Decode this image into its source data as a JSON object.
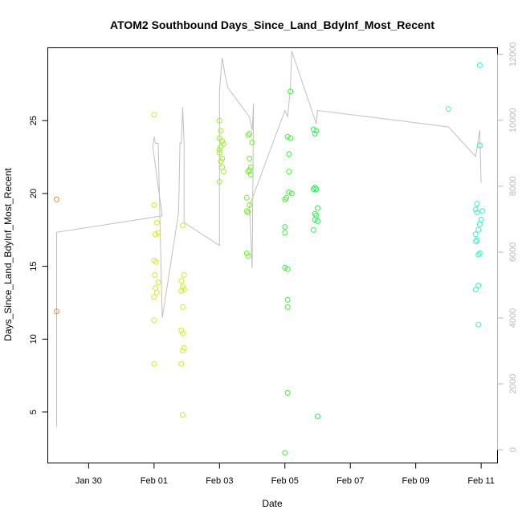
{
  "chart_data": {
    "type": "scatter",
    "title": "ATOM2 Southbound Days_Since_Land_BdyInf_Most_Recent",
    "xlabel": "Date",
    "ylabel": "Days_Since_Land_BdyInf_Most_Recent",
    "x_ticks": [
      "Jan 30",
      "Feb 01",
      "Feb 03",
      "Feb 05",
      "Feb 07",
      "Feb 09",
      "Feb 11"
    ],
    "y_ticks": [
      5,
      10,
      15,
      20,
      25
    ],
    "y2_ticks": [
      0,
      2000,
      4000,
      6000,
      8000,
      10000,
      12000
    ],
    "xlim": [
      "2019-01-28T18:00",
      "2019-02-11T12:00"
    ],
    "ylim": [
      1.5,
      30
    ],
    "y2lim": [
      -400,
      12200
    ],
    "grid": false,
    "colors": {
      "jan28": "#f08a2b",
      "feb01": "#d6e82a",
      "feb02": "#c8f02a",
      "feb03": "#9ef02a",
      "feb04": "#6ff02a",
      "feb05": "#3ef23a",
      "feb06": "#2ef055",
      "feb10": "#48f2a6",
      "feb11": "#3af0c8",
      "line": "#c0c0c0"
    },
    "series": [
      {
        "color": "#f08a2b",
        "points": [
          [
            "2019-01-29T00:30",
            19.6
          ],
          [
            "2019-01-29T00:30",
            11.9
          ]
        ]
      },
      {
        "color": "#d6e82a",
        "points": [
          [
            "2019-02-01T00:00",
            25.4
          ],
          [
            "2019-02-01T00:00",
            19.2
          ],
          [
            "2019-02-01T02:00",
            18.0
          ],
          [
            "2019-02-01T03:00",
            17.3
          ],
          [
            "2019-02-01T01:00",
            17.2
          ],
          [
            "2019-02-01T00:00",
            15.4
          ],
          [
            "2019-02-01T01:30",
            15.3
          ],
          [
            "2019-02-01T00:30",
            14.4
          ],
          [
            "2019-02-01T03:00",
            13.9
          ],
          [
            "2019-02-01T01:00",
            13.5
          ],
          [
            "2019-02-01T02:00",
            13.2
          ],
          [
            "2019-02-01T00:00",
            12.9
          ],
          [
            "2019-02-01T00:00",
            11.3
          ],
          [
            "2019-02-01T00:00",
            8.3
          ]
        ]
      },
      {
        "color": "#c8f02a",
        "points": [
          [
            "2019-02-01T21:00",
            17.8
          ],
          [
            "2019-02-01T22:00",
            14.4
          ],
          [
            "2019-02-01T20:00",
            14.0
          ],
          [
            "2019-02-01T21:00",
            13.6
          ],
          [
            "2019-02-01T22:00",
            13.4
          ],
          [
            "2019-02-01T20:00",
            13.3
          ],
          [
            "2019-02-01T21:00",
            12.2
          ],
          [
            "2019-02-01T20:00",
            10.6
          ],
          [
            "2019-02-01T21:00",
            10.4
          ],
          [
            "2019-02-01T22:00",
            9.4
          ],
          [
            "2019-02-01T21:00",
            9.2
          ],
          [
            "2019-02-01T20:00",
            8.3
          ],
          [
            "2019-02-01T21:00",
            4.8
          ]
        ]
      },
      {
        "color": "#9ef02a",
        "points": [
          [
            "2019-02-03T00:00",
            25.0
          ],
          [
            "2019-02-03T01:00",
            24.3
          ],
          [
            "2019-02-03T00:00",
            23.8
          ],
          [
            "2019-02-03T02:00",
            23.6
          ],
          [
            "2019-02-03T03:00",
            23.4
          ],
          [
            "2019-02-03T01:00",
            23.2
          ],
          [
            "2019-02-03T00:00",
            23.0
          ],
          [
            "2019-02-03T00:00",
            22.8
          ],
          [
            "2019-02-03T02:00",
            22.4
          ],
          [
            "2019-02-03T01:00",
            22.2
          ],
          [
            "2019-02-03T02:00",
            21.8
          ],
          [
            "2019-02-03T03:00",
            21.5
          ],
          [
            "2019-02-03T00:00",
            20.8
          ]
        ]
      },
      {
        "color": "#6ff02a",
        "points": [
          [
            "2019-02-03T21:00",
            24.0
          ],
          [
            "2019-02-03T22:00",
            24.1
          ],
          [
            "2019-02-04T00:00",
            23.5
          ],
          [
            "2019-02-03T22:00",
            22.4
          ],
          [
            "2019-02-03T23:00",
            21.8
          ],
          [
            "2019-02-03T22:00",
            21.6
          ],
          [
            "2019-02-03T21:00",
            21.5
          ],
          [
            "2019-02-03T23:00",
            21.3
          ],
          [
            "2019-02-03T20:00",
            19.7
          ],
          [
            "2019-02-03T22:00",
            19.2
          ],
          [
            "2019-02-03T20:00",
            18.8
          ],
          [
            "2019-02-03T21:00",
            18.7
          ],
          [
            "2019-02-03T20:00",
            15.9
          ],
          [
            "2019-02-03T21:00",
            15.7
          ]
        ]
      },
      {
        "color": "#3ef23a",
        "points": [
          [
            "2019-02-05T04:00",
            27.0
          ],
          [
            "2019-02-05T02:00",
            23.9
          ],
          [
            "2019-02-05T04:00",
            23.8
          ],
          [
            "2019-02-05T03:00",
            22.7
          ],
          [
            "2019-02-05T03:00",
            21.5
          ],
          [
            "2019-02-05T03:00",
            20.1
          ],
          [
            "2019-02-05T05:00",
            20.0
          ],
          [
            "2019-02-05T01:00",
            19.7
          ],
          [
            "2019-02-05T00:00",
            19.6
          ],
          [
            "2019-02-05T00:00",
            17.7
          ],
          [
            "2019-02-05T00:00",
            17.3
          ],
          [
            "2019-02-05T00:00",
            14.9
          ],
          [
            "2019-02-05T02:00",
            14.8
          ],
          [
            "2019-02-05T02:00",
            12.7
          ],
          [
            "2019-02-05T02:00",
            12.2
          ],
          [
            "2019-02-05T02:00",
            6.3
          ],
          [
            "2019-02-05T00:00",
            2.2
          ]
        ]
      },
      {
        "color": "#2ef055",
        "points": [
          [
            "2019-02-05T21:00",
            24.4
          ],
          [
            "2019-02-05T23:00",
            24.3
          ],
          [
            "2019-02-05T22:00",
            24.1
          ],
          [
            "2019-02-05T22:00",
            20.4
          ],
          [
            "2019-02-05T23:00",
            20.3
          ],
          [
            "2019-02-05T21:00",
            20.3
          ],
          [
            "2019-02-06T00:00",
            19.0
          ],
          [
            "2019-02-05T22:00",
            18.6
          ],
          [
            "2019-02-05T23:00",
            18.5
          ],
          [
            "2019-02-05T22:00",
            18.2
          ],
          [
            "2019-02-06T00:00",
            18.1
          ],
          [
            "2019-02-05T21:00",
            17.5
          ],
          [
            "2019-02-06T00:00",
            4.7
          ]
        ]
      },
      {
        "color": "#48f2a6",
        "points": [
          [
            "2019-02-10T00:00",
            25.8
          ]
        ]
      },
      {
        "color": "#3af0c8",
        "points": [
          [
            "2019-02-10T23:00",
            28.8
          ],
          [
            "2019-02-10T23:00",
            23.3
          ],
          [
            "2019-02-10T21:00",
            19.3
          ],
          [
            "2019-02-10T20:00",
            18.9
          ],
          [
            "2019-02-11T01:00",
            18.8
          ],
          [
            "2019-02-10T21:00",
            18.7
          ],
          [
            "2019-02-11T00:00",
            18.2
          ],
          [
            "2019-02-10T23:00",
            17.9
          ],
          [
            "2019-02-10T22:00",
            17.5
          ],
          [
            "2019-02-10T20:00",
            17.2
          ],
          [
            "2019-02-10T21:00",
            16.8
          ],
          [
            "2019-02-10T20:00",
            16.7
          ],
          [
            "2019-02-10T23:00",
            15.9
          ],
          [
            "2019-02-10T22:00",
            15.8
          ],
          [
            "2019-02-10T22:00",
            13.7
          ],
          [
            "2019-02-10T20:00",
            13.4
          ],
          [
            "2019-02-10T22:00",
            11.0
          ]
        ]
      }
    ],
    "line_series": {
      "axis": "right",
      "color": "#c0c0c0",
      "points": [
        [
          "2019-01-29T00:30",
          700
        ],
        [
          "2019-01-29T00:30",
          6600
        ],
        [
          "2019-02-01T06:00",
          7100
        ],
        [
          "2019-01-31T23:00",
          9200
        ],
        [
          "2019-02-01T00:00",
          9500
        ],
        [
          "2019-02-01T01:00",
          9300
        ],
        [
          "2019-02-01T02:00",
          9300
        ],
        [
          "2019-02-01T03:00",
          9300
        ],
        [
          "2019-02-01T06:00",
          4000
        ],
        [
          "2019-02-01T18:00",
          7200
        ],
        [
          "2019-02-01T19:00",
          9300
        ],
        [
          "2019-02-01T20:00",
          9300
        ],
        [
          "2019-02-01T21:00",
          10400
        ],
        [
          "2019-02-01T22:00",
          9300
        ],
        [
          "2019-02-01T22:00",
          6900
        ],
        [
          "2019-02-03T00:00",
          6200
        ],
        [
          "2019-02-03T00:00",
          10900
        ],
        [
          "2019-02-03T02:00",
          11900
        ],
        [
          "2019-02-03T04:00",
          11400
        ],
        [
          "2019-02-03T06:00",
          11000
        ],
        [
          "2019-02-03T22:00",
          10100
        ],
        [
          "2019-02-03T23:00",
          9900
        ],
        [
          "2019-02-04T00:00",
          9700
        ],
        [
          "2019-02-04T01:00",
          10500
        ],
        [
          "2019-02-04T00:00",
          5500
        ],
        [
          "2019-02-03T22:00",
          7400
        ],
        [
          "2019-02-05T00:00",
          10300
        ],
        [
          "2019-02-05T02:00",
          10100
        ],
        [
          "2019-02-05T04:00",
          11000
        ],
        [
          "2019-02-05T05:00",
          12100
        ],
        [
          "2019-02-05T23:00",
          9900
        ],
        [
          "2019-02-06T00:00",
          10300
        ],
        [
          "2019-02-10T00:00",
          9800
        ],
        [
          "2019-02-10T20:00",
          8900
        ],
        [
          "2019-02-10T23:00",
          9700
        ],
        [
          "2019-02-11T00:00",
          8100
        ]
      ]
    }
  }
}
